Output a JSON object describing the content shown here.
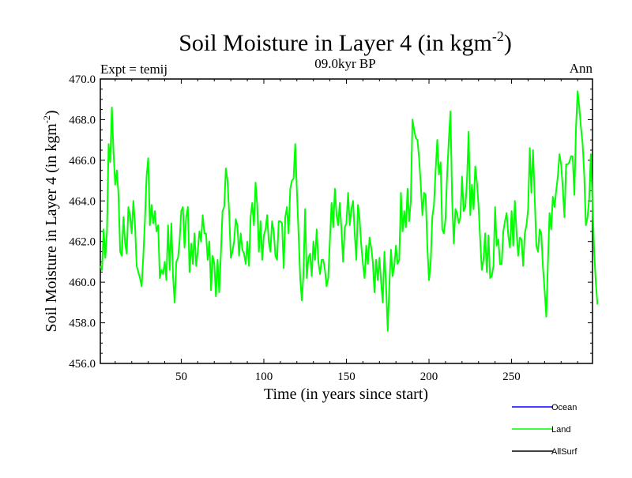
{
  "chart_data": {
    "type": "line",
    "title_main": "Soil Moisture in Layer 4 (in kgm",
    "title_sup": "-2",
    "title_close": ")",
    "subtitle_left": "Expt = temij",
    "subtitle_center": "09.0kyr BP",
    "subtitle_right": "Ann",
    "xlabel": "Time (in years since start)",
    "ylabel_main": "Soil Moisture in Layer 4 (in kgm",
    "ylabel_sup": "-2",
    "ylabel_close": ")",
    "xlim": [
      1,
      299
    ],
    "ylim": [
      456.0,
      470.0
    ],
    "x_ticks": [
      50,
      100,
      150,
      200,
      250
    ],
    "x_tick_labels": [
      "50",
      "100",
      "150",
      "200",
      "250"
    ],
    "y_ticks": [
      456,
      458,
      460,
      462,
      464,
      466,
      468,
      470
    ],
    "y_tick_labels": [
      "456.0",
      "458.0",
      "460.0",
      "462.0",
      "464.0",
      "466.0",
      "468.0",
      "470.0"
    ],
    "legend": [
      {
        "name": "Ocean",
        "color": "#0000ff"
      },
      {
        "name": "Land",
        "color": "#00ff00"
      },
      {
        "name": "AllSurf",
        "color": "#000000"
      }
    ],
    "series": [
      {
        "name": "Land",
        "color": "#00ff00",
        "x_start": 1,
        "x_step": 1,
        "values": [
          460.8,
          460.6,
          462.6,
          461.2,
          462.5,
          466.8,
          465.9,
          468.6,
          466.4,
          464.8,
          465.5,
          464.3,
          461.5,
          461.3,
          463.2,
          461.9,
          461.4,
          463.7,
          463.3,
          462.4,
          464.0,
          462.8,
          460.8,
          460.5,
          460.2,
          459.8,
          461.3,
          463.0,
          465.2,
          466.1,
          462.8,
          463.8,
          462.9,
          463.5,
          462.5,
          462.8,
          460.2,
          460.6,
          460.4,
          461.0,
          460.1,
          462.8,
          460.6,
          462.9,
          460.3,
          459.0,
          461.0,
          461.2,
          462.0,
          463.5,
          463.7,
          461.7,
          463.2,
          463.7,
          460.5,
          461.9,
          460.9,
          462.4,
          460.8,
          461.5,
          462.5,
          462.0,
          463.3,
          462.4,
          462.4,
          461.1,
          462.0,
          459.6,
          461.3,
          460.9,
          459.3,
          461.1,
          459.5,
          461.4,
          463.5,
          463.7,
          465.6,
          465.0,
          463.4,
          461.2,
          461.5,
          462.0,
          463.1,
          462.8,
          461.3,
          462.4,
          461.6,
          461.4,
          460.9,
          462.0,
          460.8,
          463.2,
          463.9,
          462.8,
          464.9,
          463.8,
          461.5,
          463.0,
          461.1,
          462.3,
          462.6,
          463.3,
          462.0,
          461.5,
          463.0,
          462.5,
          461.3,
          461.1,
          463.0,
          463.0,
          462.9,
          460.7,
          463.2,
          463.7,
          462.4,
          464.6,
          465.0,
          465.1,
          466.8,
          464.5,
          462.4,
          460.2,
          459.1,
          460.4,
          463.6,
          460.2,
          461.2,
          461.4,
          460.3,
          462.0,
          461.1,
          462.6,
          461.0,
          460.4,
          461.1,
          461.1,
          460.6,
          459.8,
          460.2,
          462.1,
          463.9,
          462.7,
          464.6,
          463.3,
          462.8,
          463.9,
          462.6,
          461.0,
          462.7,
          462.9,
          464.4,
          462.8,
          463.6,
          464.0,
          462.4,
          461.1,
          463.8,
          463.1,
          461.8,
          460.9,
          460.2,
          461.8,
          460.9,
          462.2,
          461.7,
          461.0,
          459.5,
          461.1,
          460.1,
          461.2,
          460.0,
          459.0,
          461.5,
          459.8,
          457.6,
          459.9,
          461.6,
          460.3,
          460.8,
          461.8,
          460.9,
          461.1,
          464.4,
          462.5,
          463.5,
          462.7,
          464.6,
          463.0,
          464.0,
          468.0,
          467.5,
          467.1,
          467.0,
          466.1,
          464.8,
          463.3,
          464.4,
          464.3,
          461.8,
          460.1,
          460.9,
          463.2,
          463.8,
          465.5,
          467.0,
          465.3,
          465.9,
          462.6,
          462.4,
          463.1,
          465.3,
          467.0,
          468.4,
          464.1,
          461.9,
          463.6,
          463.4,
          462.9,
          463.2,
          465.2,
          463.5,
          463.7,
          465.0,
          467.4,
          463.3,
          464.8,
          463.6,
          465.7,
          464.9,
          463.8,
          462.1,
          460.6,
          461.1,
          462.4,
          460.5,
          462.3,
          460.2,
          460.3,
          460.8,
          463.7,
          461.8,
          462.1,
          460.9,
          460.9,
          462.5,
          463.0,
          463.4,
          462.3,
          461.7,
          463.5,
          461.8,
          464.0,
          462.5,
          461.3,
          462.2,
          462.1,
          460.8,
          462.4,
          462.8,
          463.6,
          466.6,
          464.4,
          466.5,
          464.2,
          461.8,
          461.5,
          462.6,
          462.4,
          460.7,
          459.6,
          458.3,
          461.0,
          463.4,
          462.6,
          464.2,
          463.7,
          464.5,
          465.2,
          466.3,
          465.8,
          464.6,
          463.2,
          465.8,
          465.8,
          465.9,
          466.2,
          466.2,
          464.3,
          467.6,
          469.4,
          468.6,
          467.6,
          466.8,
          465.3,
          462.8,
          463.2,
          464.1,
          466.3,
          464.0,
          461.5,
          460.0,
          458.9
        ]
      }
    ]
  }
}
